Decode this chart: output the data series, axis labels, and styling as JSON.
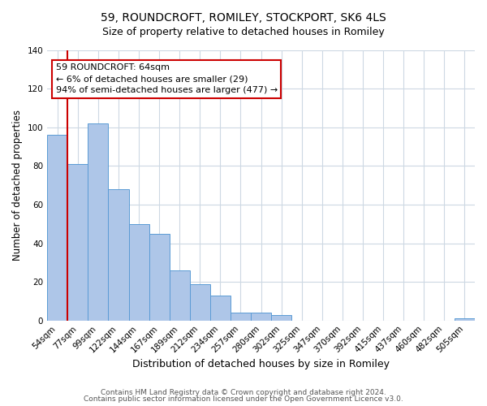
{
  "title": "59, ROUNDCROFT, ROMILEY, STOCKPORT, SK6 4LS",
  "subtitle": "Size of property relative to detached houses in Romiley",
  "xlabel": "Distribution of detached houses by size in Romiley",
  "ylabel": "Number of detached properties",
  "footer_line1": "Contains HM Land Registry data © Crown copyright and database right 2024.",
  "footer_line2": "Contains public sector information licensed under the Open Government Licence v3.0.",
  "categories": [
    "54sqm",
    "77sqm",
    "99sqm",
    "122sqm",
    "144sqm",
    "167sqm",
    "189sqm",
    "212sqm",
    "234sqm",
    "257sqm",
    "280sqm",
    "302sqm",
    "325sqm",
    "347sqm",
    "370sqm",
    "392sqm",
    "415sqm",
    "437sqm",
    "460sqm",
    "482sqm",
    "505sqm"
  ],
  "values": [
    96,
    81,
    102,
    68,
    50,
    45,
    26,
    19,
    13,
    4,
    4,
    3,
    0,
    0,
    0,
    0,
    0,
    0,
    0,
    0,
    1
  ],
  "bar_color": "#aec6e8",
  "bar_edge_color": "#5b9bd5",
  "highlight_color": "#cc0000",
  "annotation_text_line1": "59 ROUNDCROFT: 64sqm",
  "annotation_text_line2": "← 6% of detached houses are smaller (29)",
  "annotation_text_line3": "94% of semi-detached houses are larger (477) →",
  "ylim": [
    0,
    140
  ],
  "yticks": [
    0,
    20,
    40,
    60,
    80,
    100,
    120,
    140
  ],
  "background_color": "#ffffff",
  "grid_color": "#cdd8e3",
  "title_fontsize": 10,
  "subtitle_fontsize": 9,
  "ylabel_fontsize": 8.5,
  "xlabel_fontsize": 9,
  "tick_fontsize": 7.5,
  "ann_fontsize": 8,
  "footer_fontsize": 6.5
}
